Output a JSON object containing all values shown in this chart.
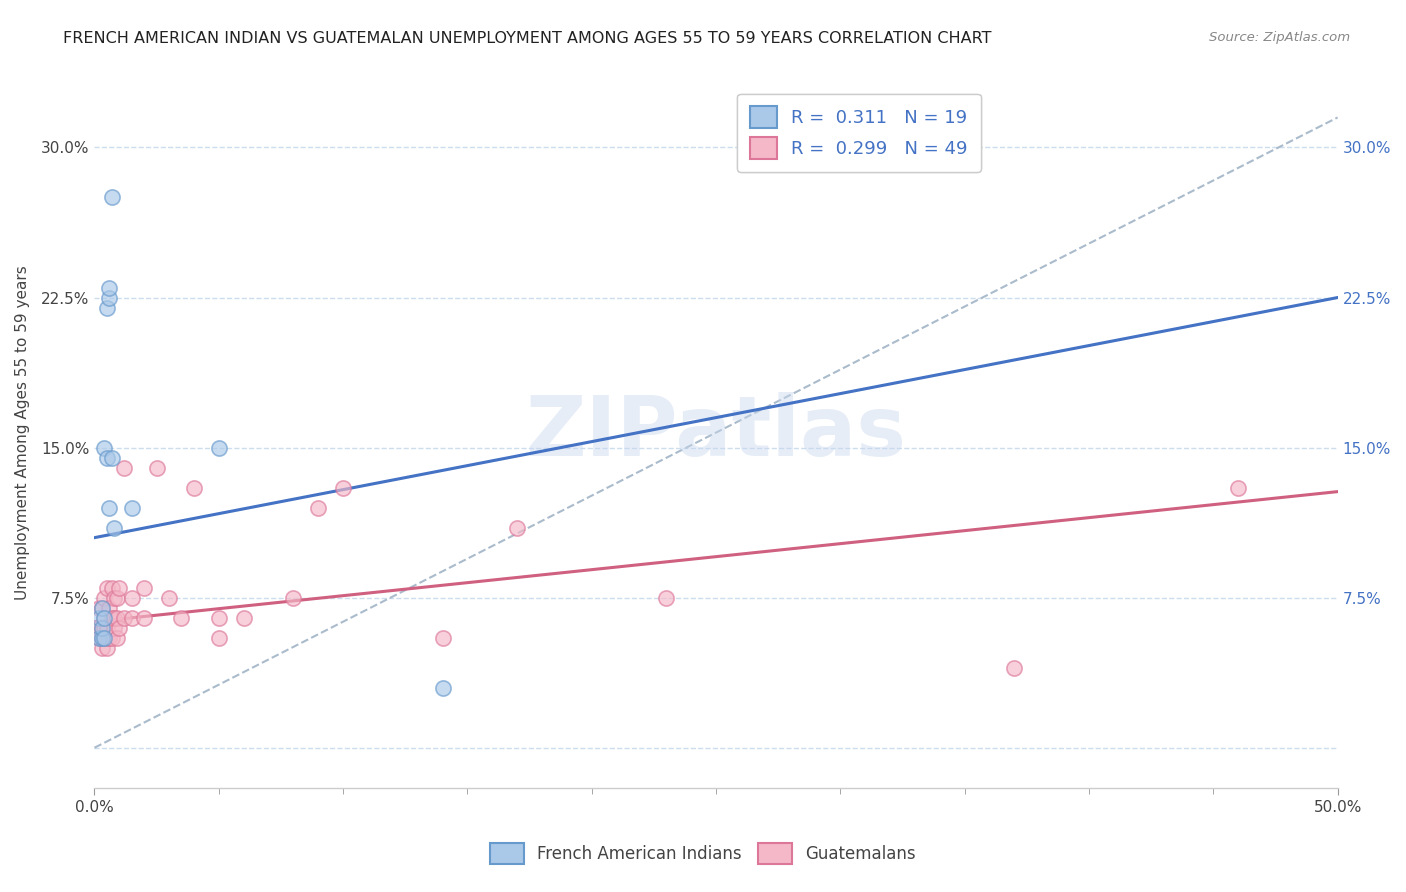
{
  "title": "FRENCH AMERICAN INDIAN VS GUATEMALAN UNEMPLOYMENT AMONG AGES 55 TO 59 YEARS CORRELATION CHART",
  "source": "Source: ZipAtlas.com",
  "ylabel": "Unemployment Among Ages 55 to 59 years",
  "ytick_values": [
    0.0,
    0.075,
    0.15,
    0.225,
    0.3
  ],
  "ytick_labels_left": [
    "",
    "7.5%",
    "15.0%",
    "22.5%",
    "30.0%"
  ],
  "ytick_labels_right": [
    "",
    "7.5%",
    "15.0%",
    "22.5%",
    "30.0%"
  ],
  "xlim": [
    0.0,
    0.5
  ],
  "ylim": [
    -0.02,
    0.335
  ],
  "xtick_values": [
    0.0,
    0.5
  ],
  "xtick_labels": [
    "0.0%",
    "50.0%"
  ],
  "xtick_minor_values": [
    0.05,
    0.1,
    0.15,
    0.2,
    0.25,
    0.3,
    0.35,
    0.4,
    0.45
  ],
  "legend1_label": "R =  0.311   N = 19",
  "legend2_label": "R =  0.299   N = 49",
  "legend_text_color": "#4472c4",
  "blue_scatter_color": "#aac8e8",
  "pink_scatter_color": "#f4b8c8",
  "blue_edge_color": "#6699cc",
  "pink_edge_color": "#dd7799",
  "blue_line_color": "#4472c4",
  "pink_line_color": "#d06080",
  "dashed_line_color": "#aabbcc",
  "french_x": [
    0.002,
    0.002,
    0.003,
    0.003,
    0.003,
    0.004,
    0.004,
    0.004,
    0.005,
    0.005,
    0.006,
    0.006,
    0.006,
    0.007,
    0.007,
    0.008,
    0.015,
    0.05,
    0.14
  ],
  "french_y": [
    0.055,
    0.065,
    0.055,
    0.06,
    0.07,
    0.055,
    0.065,
    0.15,
    0.145,
    0.22,
    0.12,
    0.225,
    0.23,
    0.145,
    0.275,
    0.11,
    0.12,
    0.15,
    0.03
  ],
  "guatemalan_x": [
    0.002,
    0.002,
    0.002,
    0.003,
    0.003,
    0.003,
    0.003,
    0.004,
    0.004,
    0.004,
    0.004,
    0.005,
    0.005,
    0.005,
    0.005,
    0.006,
    0.006,
    0.007,
    0.007,
    0.007,
    0.008,
    0.008,
    0.008,
    0.009,
    0.009,
    0.009,
    0.01,
    0.01,
    0.012,
    0.012,
    0.015,
    0.015,
    0.02,
    0.02,
    0.025,
    0.03,
    0.035,
    0.04,
    0.05,
    0.05,
    0.06,
    0.08,
    0.09,
    0.1,
    0.14,
    0.17,
    0.23,
    0.37,
    0.46
  ],
  "guatemalan_y": [
    0.055,
    0.06,
    0.07,
    0.05,
    0.055,
    0.06,
    0.07,
    0.055,
    0.06,
    0.065,
    0.075,
    0.05,
    0.055,
    0.06,
    0.08,
    0.055,
    0.07,
    0.055,
    0.065,
    0.08,
    0.06,
    0.065,
    0.075,
    0.055,
    0.065,
    0.075,
    0.06,
    0.08,
    0.065,
    0.14,
    0.065,
    0.075,
    0.065,
    0.08,
    0.14,
    0.075,
    0.065,
    0.13,
    0.055,
    0.065,
    0.065,
    0.075,
    0.12,
    0.13,
    0.055,
    0.11,
    0.075,
    0.04,
    0.13
  ],
  "blue_trend": [
    0.0,
    0.5,
    0.105,
    0.225
  ],
  "pink_trend": [
    0.0,
    0.5,
    0.063,
    0.128
  ],
  "dashed_trend": [
    0.0,
    0.5,
    0.0,
    0.315
  ],
  "grid_color": "#ccddee",
  "background_color": "#ffffff",
  "title_fontsize": 11.5,
  "source_fontsize": 9.5,
  "axis_label_fontsize": 11,
  "tick_fontsize": 11,
  "right_tick_color": "#4472c4",
  "scatter_size": 120,
  "scatter_alpha": 0.65,
  "scatter_lw": 1.2,
  "watermark_text": "ZIPatlas",
  "watermark_color": "#c8d8ee",
  "watermark_alpha": 0.45,
  "watermark_fontsize": 60
}
